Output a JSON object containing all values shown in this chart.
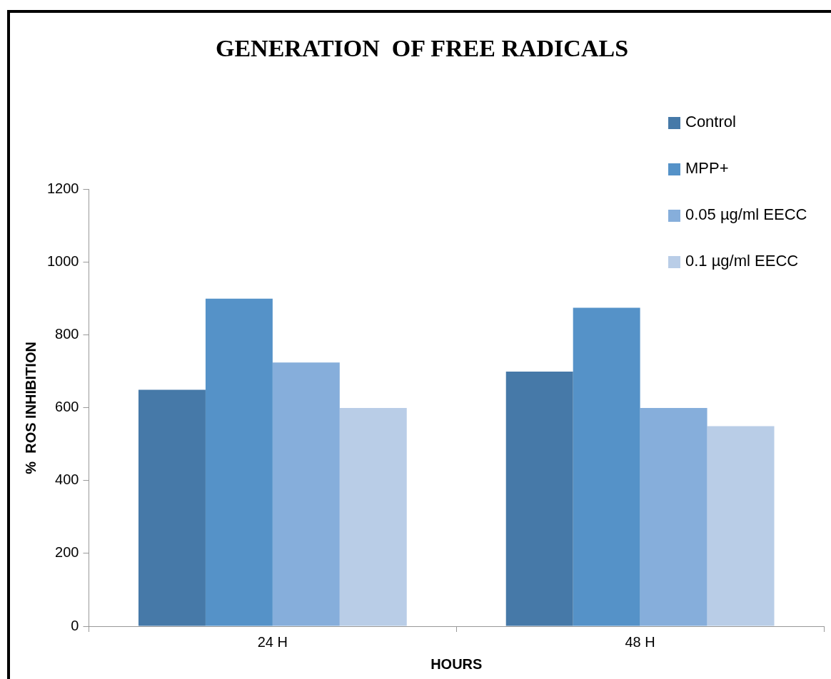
{
  "chart_data": {
    "type": "bar",
    "title": "GENERATION  OF FREE RADICALS",
    "xlabel": "HOURS",
    "ylabel": "%  ROS INHIBITION",
    "categories": [
      "24 H",
      "48 H"
    ],
    "series": [
      {
        "name": "Control",
        "color": "#4679a8",
        "values": [
          650,
          700
        ]
      },
      {
        "name": "MPP+",
        "color": "#5592c8",
        "values": [
          900,
          875
        ]
      },
      {
        "name": "0.05 µg/ml EECC",
        "color": "#86aedb",
        "values": [
          725,
          600
        ]
      },
      {
        "name": "0.1 µg/ml EECC",
        "color": "#b9cde7",
        "values": [
          600,
          550
        ]
      }
    ],
    "ylim": [
      0,
      1200
    ],
    "yticks": [
      0,
      200,
      400,
      600,
      800,
      1000,
      1200
    ],
    "grid": false,
    "legend": "top right"
  }
}
